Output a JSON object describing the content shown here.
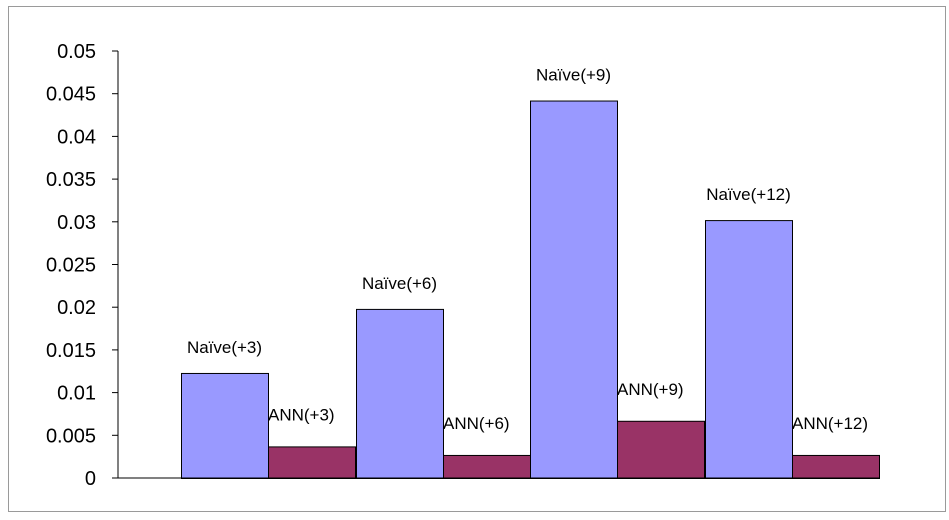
{
  "chart_data": {
    "type": "bar",
    "categories": [
      "+3",
      "+6",
      "+9",
      "+12"
    ],
    "series": [
      {
        "values": [
          0.0123,
          0.0198,
          0.0442,
          0.0302
        ],
        "labels": [
          "Naïve(+3)",
          "Naïve(+6)",
          "Naïve(+9)",
          "Naïve(+12)"
        ],
        "color": "#9999ff"
      },
      {
        "values": [
          0.0037,
          0.0027,
          0.0067,
          0.0027
        ],
        "labels": [
          "ANN(+3)",
          "ANN(+6)",
          "ANN(+9)",
          "ANN(+12)"
        ],
        "color": "#993366"
      }
    ],
    "ylim": [
      0,
      0.05
    ],
    "yticks": [
      "0",
      "0.005",
      "0.01",
      "0.015",
      "0.02",
      "0.025",
      "0.03",
      "0.035",
      "0.04",
      "0.045",
      "0.05"
    ],
    "grid": false,
    "legend": "none"
  }
}
